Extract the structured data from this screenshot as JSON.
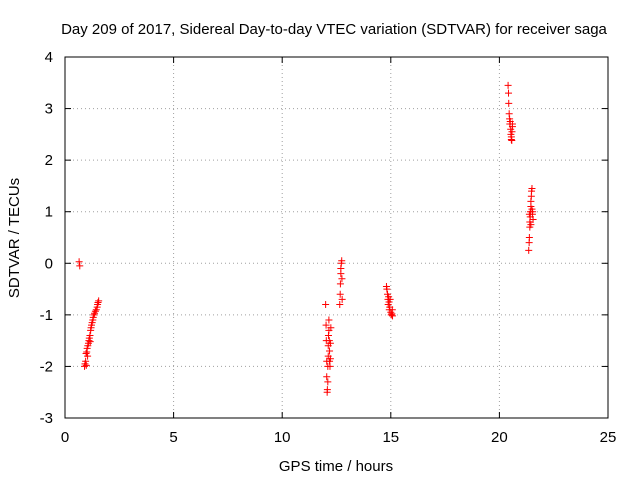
{
  "chart_data": {
    "type": "scatter",
    "title": "Day 209 of 2017, Sidereal Day-to-day VTEC variation (SDTVAR) for receiver saga",
    "xlabel": "GPS time / hours",
    "ylabel": "SDTVAR / TECUs",
    "xlim": [
      0,
      25
    ],
    "ylim": [
      -3,
      4
    ],
    "xticks": [
      "0",
      "5",
      "10",
      "15",
      "20",
      "25"
    ],
    "yticks": [
      "-3",
      "-2",
      "-1",
      "0",
      "1",
      "2",
      "3",
      "4"
    ],
    "grid": true,
    "marker": "plus",
    "color": "#ff0000",
    "series": [
      {
        "points": [
          [
            0.65,
            0.03
          ],
          [
            0.68,
            -0.05
          ],
          [
            0.9,
            -2.0
          ],
          [
            0.92,
            -1.95
          ],
          [
            0.95,
            -1.9
          ],
          [
            0.97,
            -1.75
          ],
          [
            1.0,
            -1.72
          ],
          [
            1.02,
            -1.65
          ],
          [
            1.05,
            -1.6
          ],
          [
            1.08,
            -1.55
          ],
          [
            1.1,
            -1.5
          ],
          [
            1.12,
            -1.45
          ],
          [
            1.15,
            -1.4
          ],
          [
            1.18,
            -1.3
          ],
          [
            1.2,
            -1.25
          ],
          [
            1.22,
            -1.2
          ],
          [
            1.25,
            -1.15
          ],
          [
            1.28,
            -1.1
          ],
          [
            1.3,
            -1.05
          ],
          [
            1.33,
            -1.0
          ],
          [
            1.36,
            -0.97
          ],
          [
            1.4,
            -0.93
          ],
          [
            1.44,
            -0.9
          ],
          [
            1.48,
            -0.85
          ],
          [
            1.5,
            -0.8
          ],
          [
            1.52,
            -0.76
          ],
          [
            1.55,
            -0.73
          ],
          [
            0.98,
            -1.98
          ],
          [
            1.04,
            -1.8
          ],
          [
            1.16,
            -1.52
          ],
          [
            12.0,
            -0.8
          ],
          [
            12.02,
            -1.2
          ],
          [
            12.03,
            -1.5
          ],
          [
            12.05,
            -1.9
          ],
          [
            12.05,
            -2.2
          ],
          [
            12.07,
            -2.5
          ],
          [
            12.08,
            -2.45
          ],
          [
            12.1,
            -2.3
          ],
          [
            12.1,
            -2.0
          ],
          [
            12.12,
            -1.8
          ],
          [
            12.12,
            -1.6
          ],
          [
            12.13,
            -1.4
          ],
          [
            12.15,
            -1.3
          ],
          [
            12.15,
            -1.1
          ],
          [
            12.17,
            -1.5
          ],
          [
            12.18,
            -1.7
          ],
          [
            12.18,
            -1.9
          ],
          [
            12.2,
            -2.0
          ],
          [
            12.22,
            -1.85
          ],
          [
            12.22,
            -1.55
          ],
          [
            12.24,
            -1.25
          ],
          [
            12.65,
            -0.8
          ],
          [
            12.67,
            -0.6
          ],
          [
            12.68,
            -0.4
          ],
          [
            12.7,
            -0.2
          ],
          [
            12.7,
            -0.1
          ],
          [
            12.72,
            0.0
          ],
          [
            12.74,
            0.05
          ],
          [
            12.75,
            -0.3
          ],
          [
            12.76,
            -0.7
          ],
          [
            14.8,
            -0.45
          ],
          [
            14.82,
            -0.5
          ],
          [
            14.85,
            -0.6
          ],
          [
            14.87,
            -0.7
          ],
          [
            14.88,
            -0.8
          ],
          [
            14.9,
            -0.65
          ],
          [
            14.92,
            -0.75
          ],
          [
            14.93,
            -0.9
          ],
          [
            14.95,
            -0.85
          ],
          [
            14.97,
            -0.7
          ],
          [
            15.0,
            -0.95
          ],
          [
            15.02,
            -1.0
          ],
          [
            15.05,
            -0.98
          ],
          [
            15.07,
            -0.9
          ],
          [
            15.08,
            -1.02
          ],
          [
            20.4,
            3.45
          ],
          [
            20.42,
            3.3
          ],
          [
            20.43,
            3.1
          ],
          [
            20.45,
            2.9
          ],
          [
            20.47,
            2.8
          ],
          [
            20.48,
            2.7
          ],
          [
            20.5,
            2.75
          ],
          [
            20.52,
            2.6
          ],
          [
            20.53,
            2.5
          ],
          [
            20.55,
            2.45
          ],
          [
            20.55,
            2.4
          ],
          [
            20.57,
            2.38
          ],
          [
            20.58,
            2.55
          ],
          [
            20.6,
            2.65
          ],
          [
            20.6,
            2.7
          ],
          [
            21.35,
            0.25
          ],
          [
            21.37,
            0.4
          ],
          [
            21.38,
            0.5
          ],
          [
            21.4,
            0.7
          ],
          [
            21.4,
            0.8
          ],
          [
            21.42,
            0.9
          ],
          [
            21.43,
            1.0
          ],
          [
            21.45,
            1.1
          ],
          [
            21.45,
            1.2
          ],
          [
            21.47,
            1.3
          ],
          [
            21.48,
            1.4
          ],
          [
            21.5,
            1.45
          ],
          [
            21.5,
            1.05
          ],
          [
            21.52,
            0.95
          ],
          [
            21.53,
            1.0
          ],
          [
            21.55,
            0.85
          ],
          [
            21.45,
            0.75
          ],
          [
            21.38,
            0.95
          ]
        ]
      }
    ]
  }
}
